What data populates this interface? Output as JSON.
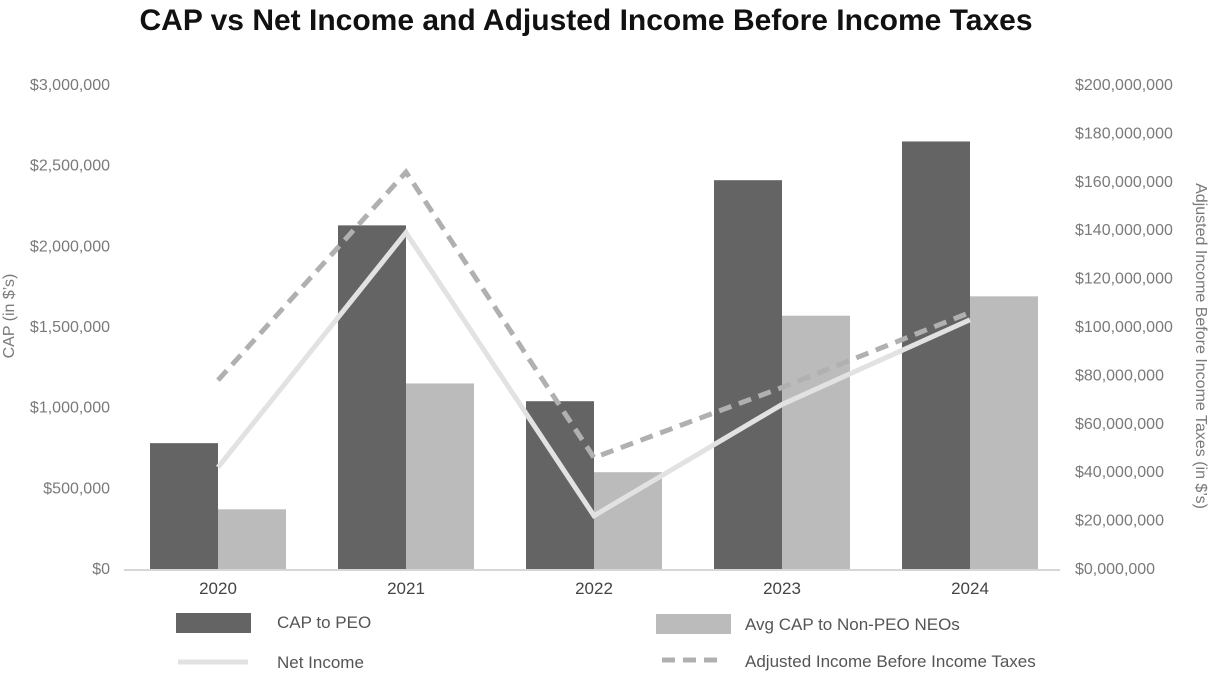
{
  "chart_data": {
    "type": "bar",
    "title": "CAP vs Net Income and Adjusted Income Before Income Taxes",
    "categories": [
      "2020",
      "2021",
      "2022",
      "2023",
      "2024"
    ],
    "ylabel_left": "CAP (in $’s)",
    "ylabel_right": "Adjusted Income Before Income Taxes (in $’s)",
    "ylim_left": [
      0,
      3000000
    ],
    "ylim_right": [
      0,
      200000000
    ],
    "yticks_left": [
      "$0",
      "$500,000",
      "$1,000,000",
      "$1,500,000",
      "$2,000,000",
      "$2,500,000",
      "$3,000,000"
    ],
    "yticks_right": [
      "$0,000,000",
      "$20,000,000",
      "$40,000,000",
      "$60,000,000",
      "$80,000,000",
      "$100,000,000",
      "$120,000,000",
      "$140,000,000",
      "$160,000,000",
      "$180,000,000",
      "$200,000,000"
    ],
    "grid": false,
    "series": [
      {
        "name": "CAP to PEO",
        "kind": "bar",
        "axis": "left",
        "color": "#646464",
        "values": [
          780000,
          2130000,
          1040000,
          2410000,
          2650000
        ]
      },
      {
        "name": "Avg CAP to Non-PEO NEOs",
        "kind": "bar",
        "axis": "left",
        "color": "#bbbbbb",
        "values": [
          370000,
          1150000,
          600000,
          1570000,
          1690000
        ]
      },
      {
        "name": "Net Income",
        "kind": "line",
        "axis": "right",
        "color": "#e2e2e2",
        "dash": false,
        "values": [
          42000000,
          139000000,
          22000000,
          68000000,
          103000000
        ]
      },
      {
        "name": "Adjusted Income Before Income Taxes",
        "kind": "line",
        "axis": "right",
        "color": "#b0b0b0",
        "dash": true,
        "values": [
          78000000,
          164000000,
          46000000,
          75000000,
          106000000
        ]
      }
    ],
    "legend": [
      {
        "label": "CAP to PEO",
        "series": 0
      },
      {
        "label": "Avg CAP to Non-PEO NEOs",
        "series": 1
      },
      {
        "label": "Net Income",
        "series": 2
      },
      {
        "label": "Adjusted Income Before Income Taxes",
        "series": 3
      }
    ]
  }
}
